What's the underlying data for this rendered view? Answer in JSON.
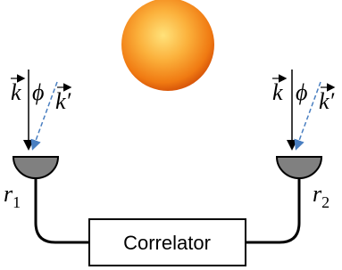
{
  "detectors": [
    {
      "k": "k",
      "phi": "ϕ",
      "k_prime": "k′",
      "r": "r",
      "r_sub": "1"
    },
    {
      "k": "k",
      "phi": "ϕ",
      "k_prime": "k′",
      "r": "r",
      "r_sub": "2"
    }
  ],
  "correlator": {
    "label": "Correlator"
  }
}
